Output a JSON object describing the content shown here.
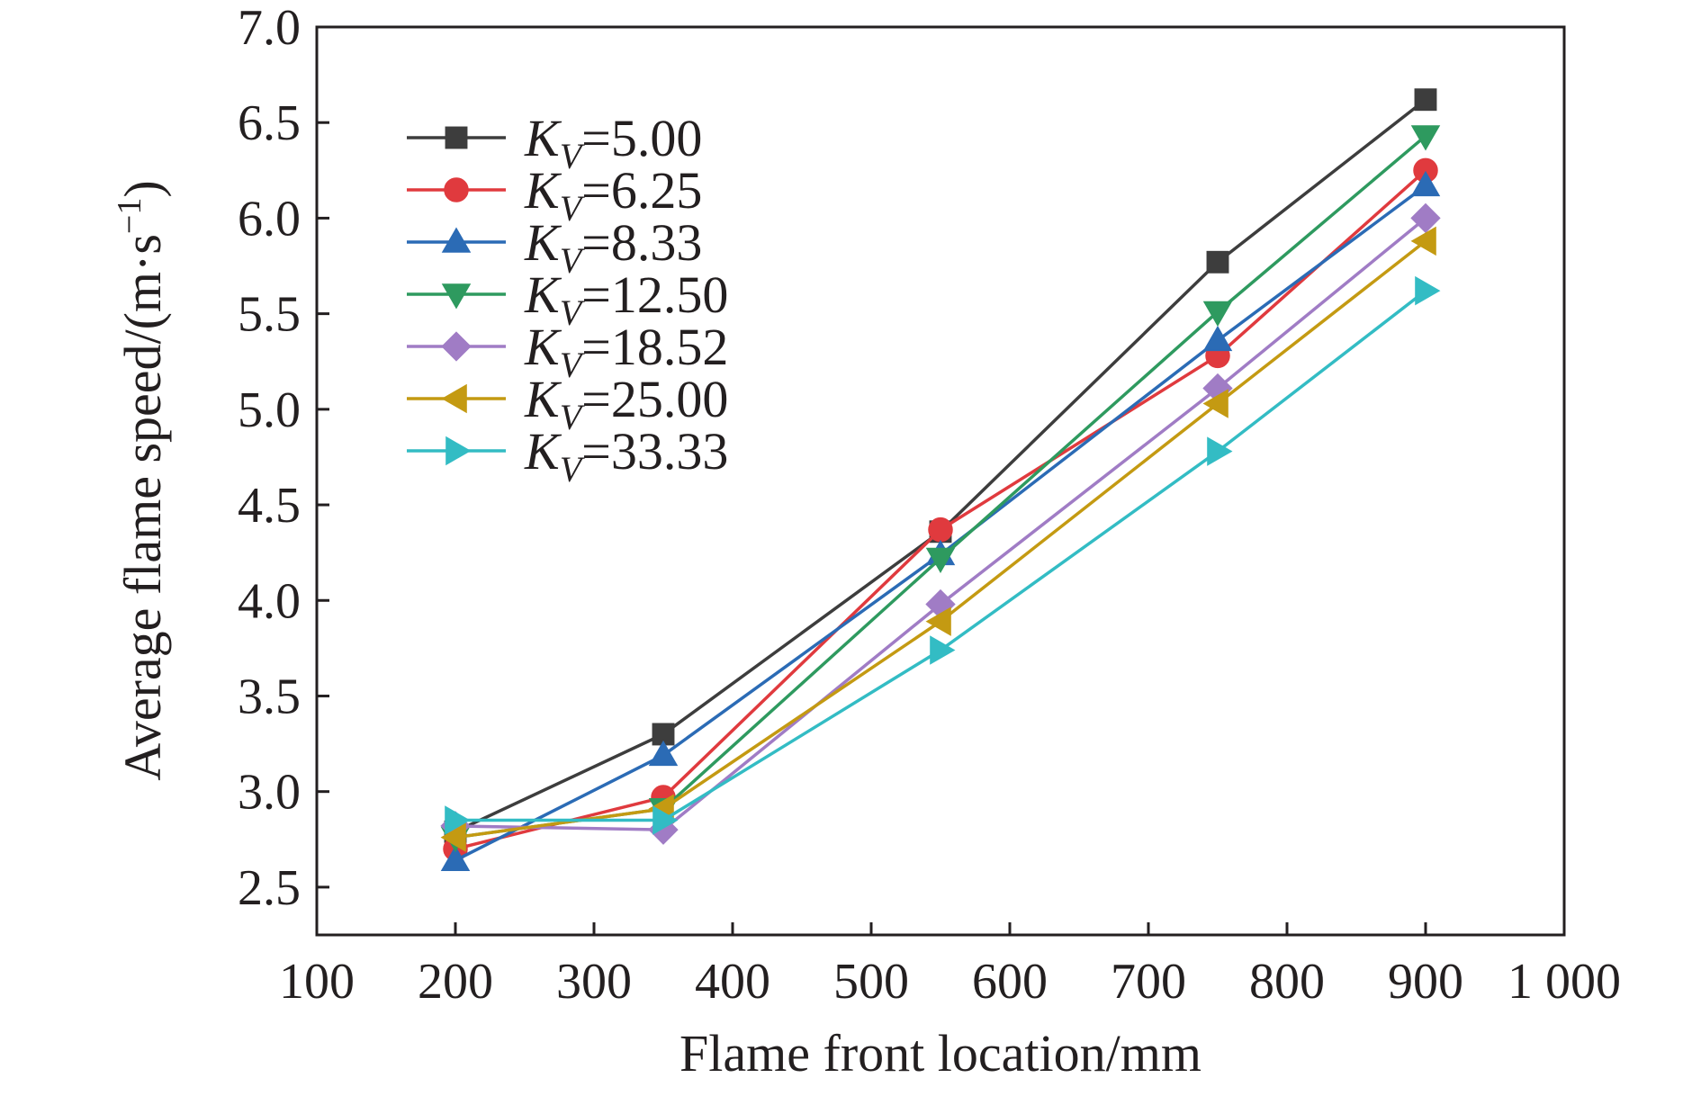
{
  "chart_data": {
    "type": "line",
    "xlabel": "Flame front location/mm",
    "ylabel_main": "Average flame speed/(m·s",
    "ylabel_sup": "−1",
    "ylabel_close": ")",
    "xlim": [
      100,
      1000
    ],
    "ylim": [
      2.25,
      7.0
    ],
    "x_ticks": [
      100,
      200,
      300,
      400,
      500,
      600,
      700,
      800,
      900,
      1000
    ],
    "x_tick_labels": [
      "100",
      "200",
      "300",
      "400",
      "500",
      "600",
      "700",
      "800",
      "900",
      "1 000"
    ],
    "y_ticks": [
      2.5,
      3.0,
      3.5,
      4.0,
      4.5,
      5.0,
      5.5,
      6.0,
      6.5,
      7.0
    ],
    "y_tick_labels": [
      "2.5",
      "3.0",
      "3.5",
      "4.0",
      "4.5",
      "5.0",
      "5.5",
      "6.0",
      "6.5",
      "7.0"
    ],
    "x": [
      200,
      350,
      550,
      750,
      900
    ],
    "legend_position": "top-left",
    "grid": false,
    "series": [
      {
        "name": "5.00",
        "k": "K",
        "sub": "V",
        "color": "#3d3d3d",
        "marker": "square",
        "values": [
          2.79,
          3.3,
          4.36,
          5.77,
          6.62
        ]
      },
      {
        "name": "6.25",
        "k": "K",
        "sub": "V",
        "color": "#e03a3e",
        "marker": "circle",
        "values": [
          2.7,
          2.97,
          4.37,
          5.28,
          6.25
        ]
      },
      {
        "name": "8.33",
        "k": "K",
        "sub": "V",
        "color": "#2b6bb5",
        "marker": "triangle-up",
        "values": [
          2.64,
          3.19,
          4.24,
          5.36,
          6.17
        ]
      },
      {
        "name": "12.50",
        "k": "K",
        "sub": "V",
        "color": "#2e9a5f",
        "marker": "triangle-down",
        "values": [
          2.76,
          2.91,
          4.22,
          5.51,
          6.43
        ]
      },
      {
        "name": "18.52",
        "k": "K",
        "sub": "V",
        "color": "#a07cc5",
        "marker": "diamond",
        "values": [
          2.82,
          2.8,
          3.98,
          5.11,
          6.0
        ]
      },
      {
        "name": "25.00",
        "k": "K",
        "sub": "V",
        "color": "#c49a12",
        "marker": "triangle-left",
        "values": [
          2.76,
          2.91,
          3.89,
          5.03,
          5.88
        ]
      },
      {
        "name": "33.33",
        "k": "K",
        "sub": "V",
        "color": "#33bcc4",
        "marker": "triangle-right",
        "values": [
          2.85,
          2.85,
          3.74,
          4.78,
          5.62
        ]
      }
    ]
  }
}
